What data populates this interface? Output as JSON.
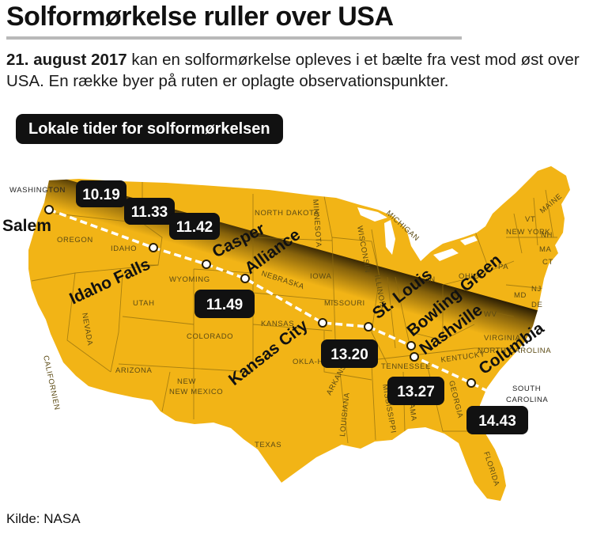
{
  "header": {
    "title": "Solformørkelse ruller over USA",
    "intro_bold": "21. august 2017",
    "intro_text": "kan en solformørkelse opleves i et bælte fra vest mod øst over USA. En række byer på ruten er oplagte observationspunkter."
  },
  "legend_title": "Lokale tider for solformørkelsen",
  "source": "Kilde: NASA",
  "colors": {
    "land": "#f2b416",
    "umbra": "#2c1e02",
    "path": "#ffffff",
    "box": "#111111"
  },
  "cities": [
    {
      "name": "Salem",
      "tilted": false
    },
    {
      "name": "Idaho Falls",
      "tilted": true
    },
    {
      "name": "Casper",
      "tilted": true
    },
    {
      "name": "Alliance",
      "tilted": true
    },
    {
      "name": "Kansas City",
      "tilted": true
    },
    {
      "name": "St. Louis",
      "tilted": true
    },
    {
      "name": "Bowling Green",
      "tilted": true
    },
    {
      "name": "Nashville",
      "tilted": true
    },
    {
      "name": "Columbia",
      "tilted": true
    }
  ],
  "times": [
    "10.19",
    "11.33",
    "11.42",
    "11.49",
    "13.20",
    "13.27",
    "14.43"
  ],
  "states": {
    "washington": "WASHINGTON",
    "oregon": "OREGON",
    "idaho": "IDAHO",
    "california": "CALIFORNIEN",
    "nevada": "NEVADA",
    "utah": "UTAH",
    "arizona": "ARIZONA",
    "new_mexico": "NEW MEXICO",
    "wyoming": "WYOMING",
    "colorado": "COLORADO",
    "north_dakota": "NORTH DAKOTA",
    "nebraska": "NEBRASKA",
    "kansas": "KANSAS",
    "oklahoma": "OKLA-HOMA",
    "texas": "TEXAS",
    "minnesota": "MINNESOTA",
    "iowa": "IOWA",
    "missouri": "MISSOURI",
    "wisconsin": "WISCONSIN",
    "michigan": "MICHIGAN",
    "illinois": "ILLINOIS",
    "arkansas": "ARKANSAS",
    "louisiana": "LOUISIANA",
    "mississippi": "MISSISSIPPI",
    "alabama": "ALABAMA",
    "tennessee": "TENNESSEE",
    "kentucky": "KENTUCKY",
    "georgia": "GEORGIA",
    "florida": "FLORIDA",
    "south_carolina_1": "SOUTH",
    "south_carolina_2": "CAROLINA",
    "virginia": "VIRGINIA",
    "north_carolina": "NORTH CAROLINA",
    "new_york": "NEW YORK",
    "vt": "VT",
    "nh": "NH",
    "maine": "MAINE",
    "ma": "MA",
    "ct": "CT",
    "nj": "NJ",
    "de": "DE",
    "md": "MD",
    "pa": "PA",
    "ohio": "OHIO",
    "in": "IN",
    "wv": "WV"
  }
}
